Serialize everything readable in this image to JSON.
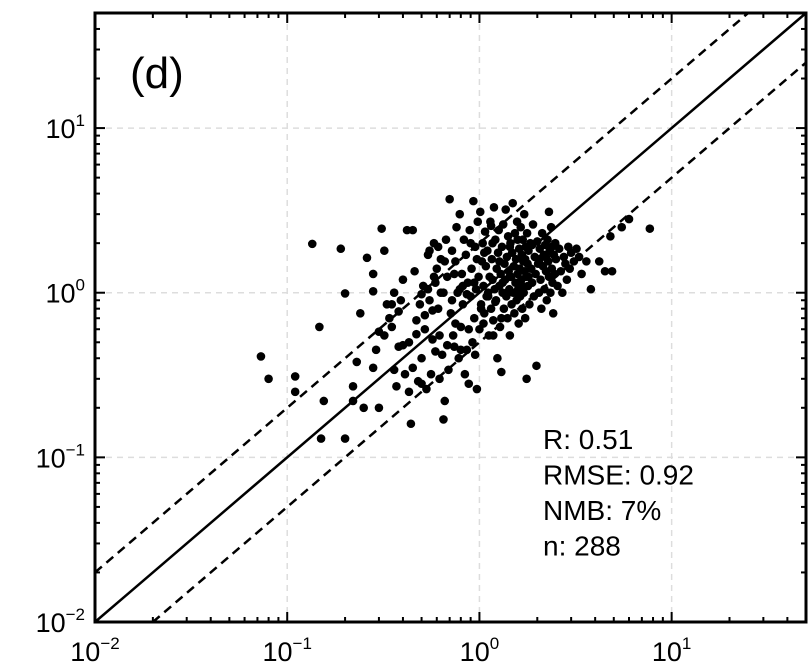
{
  "chart_data": {
    "type": "scatter",
    "panel_label": "(d)",
    "xscale": "log",
    "yscale": "log",
    "xlim": [
      0.01,
      50
    ],
    "ylim": [
      0.01,
      50
    ],
    "grid": true,
    "x_ticks": [
      {
        "value": 0.01,
        "base": "10",
        "exp": "−2"
      },
      {
        "value": 0.1,
        "base": "10",
        "exp": "−1"
      },
      {
        "value": 1,
        "base": "10",
        "exp": "0"
      },
      {
        "value": 10,
        "base": "10",
        "exp": "1"
      }
    ],
    "y_ticks": [
      {
        "value": 0.01,
        "base": "10",
        "exp": "−2"
      },
      {
        "value": 0.1,
        "base": "10",
        "exp": "−1"
      },
      {
        "value": 1,
        "base": "10",
        "exp": "0"
      },
      {
        "value": 10,
        "base": "10",
        "exp": "1"
      }
    ],
    "reference_lines": [
      {
        "style": "solid",
        "ratio": 1
      },
      {
        "style": "dashed",
        "ratio": 2
      },
      {
        "style": "dashed",
        "ratio": 0.5
      }
    ],
    "stats": [
      "R: 0.51",
      "RMSE: 0.92",
      "NMB: 7%",
      "n: 288"
    ],
    "points": [
      [
        0.073,
        0.41
      ],
      [
        0.08,
        0.3
      ],
      [
        0.11,
        0.31
      ],
      [
        0.11,
        0.25
      ],
      [
        0.135,
        1.98
      ],
      [
        0.147,
        0.62
      ],
      [
        0.15,
        0.13
      ],
      [
        0.155,
        0.22
      ],
      [
        0.19,
        1.85
      ],
      [
        0.2,
        0.99
      ],
      [
        0.2,
        0.13
      ],
      [
        0.22,
        0.27
      ],
      [
        0.22,
        0.22
      ],
      [
        0.23,
        0.38
      ],
      [
        0.24,
        0.75
      ],
      [
        0.25,
        0.2
      ],
      [
        0.26,
        1.63
      ],
      [
        0.28,
        1.02
      ],
      [
        0.28,
        1.3
      ],
      [
        0.29,
        0.45
      ],
      [
        0.3,
        0.58
      ],
      [
        0.3,
        0.2
      ],
      [
        0.31,
        2.45
      ],
      [
        0.32,
        1.8
      ],
      [
        0.33,
        0.85
      ],
      [
        0.34,
        0.7
      ],
      [
        0.35,
        0.62
      ],
      [
        0.36,
        1.0
      ],
      [
        0.37,
        0.27
      ],
      [
        0.38,
        0.77
      ],
      [
        0.39,
        0.9
      ],
      [
        0.4,
        1.2
      ],
      [
        0.41,
        0.32
      ],
      [
        0.42,
        2.4
      ],
      [
        0.43,
        0.25
      ],
      [
        0.44,
        0.16
      ],
      [
        0.45,
        2.4
      ],
      [
        0.46,
        1.35
      ],
      [
        0.47,
        0.68
      ],
      [
        0.48,
        0.29
      ],
      [
        0.49,
        0.85
      ],
      [
        0.5,
        0.4
      ],
      [
        0.51,
        1.1
      ],
      [
        0.52,
        0.6
      ],
      [
        0.53,
        0.26
      ],
      [
        0.54,
        1.7
      ],
      [
        0.55,
        0.9
      ],
      [
        0.56,
        0.32
      ],
      [
        0.57,
        0.52
      ],
      [
        0.58,
        2.0
      ],
      [
        0.59,
        0.44
      ],
      [
        0.6,
        1.4
      ],
      [
        0.61,
        0.8
      ],
      [
        0.62,
        0.3
      ],
      [
        0.63,
        1.0
      ],
      [
        0.64,
        0.42
      ],
      [
        0.65,
        0.17
      ],
      [
        0.66,
        0.22
      ],
      [
        0.67,
        2.1
      ],
      [
        0.68,
        1.25
      ],
      [
        0.69,
        0.34
      ],
      [
        0.7,
        3.7
      ],
      [
        0.71,
        0.75
      ],
      [
        0.72,
        1.8
      ],
      [
        0.73,
        0.55
      ],
      [
        0.74,
        0.47
      ],
      [
        0.75,
        1.55
      ],
      [
        0.76,
        2.5
      ],
      [
        0.77,
        1.0
      ],
      [
        0.78,
        0.4
      ],
      [
        0.79,
        3.0
      ],
      [
        0.8,
        0.62
      ],
      [
        0.81,
        1.3
      ],
      [
        0.82,
        0.85
      ],
      [
        0.83,
        2.1
      ],
      [
        0.84,
        0.32
      ],
      [
        0.85,
        1.7
      ],
      [
        0.86,
        0.45
      ],
      [
        0.87,
        1.15
      ],
      [
        0.88,
        0.28
      ],
      [
        0.89,
        2.4
      ],
      [
        0.9,
        0.95
      ],
      [
        0.91,
        1.4
      ],
      [
        0.92,
        0.5
      ],
      [
        0.93,
        3.6
      ],
      [
        0.94,
        0.7
      ],
      [
        0.95,
        1.9
      ],
      [
        0.96,
        1.05
      ],
      [
        0.97,
        0.26
      ],
      [
        0.98,
        2.7
      ],
      [
        0.99,
        1.25
      ],
      [
        1.0,
        0.6
      ],
      [
        1.01,
        3.1
      ],
      [
        1.02,
        0.85
      ],
      [
        1.03,
        1.55
      ],
      [
        1.04,
        2.0
      ],
      [
        1.05,
        1.1
      ],
      [
        1.06,
        0.75
      ],
      [
        1.07,
        2.35
      ],
      [
        1.08,
        1.45
      ],
      [
        1.09,
        0.95
      ],
      [
        1.1,
        1.8
      ],
      [
        1.11,
        1.0
      ],
      [
        1.12,
        0.55
      ],
      [
        1.13,
        1.25
      ],
      [
        1.14,
        2.7
      ],
      [
        1.15,
        0.8
      ],
      [
        1.16,
        1.6
      ],
      [
        1.17,
        1.2
      ],
      [
        1.18,
        0.68
      ],
      [
        1.19,
        3.3
      ],
      [
        1.2,
        1.05
      ],
      [
        1.21,
        2.1
      ],
      [
        1.22,
        0.9
      ],
      [
        1.23,
        1.4
      ],
      [
        1.24,
        0.4
      ],
      [
        1.25,
        1.75
      ],
      [
        1.26,
        2.4
      ],
      [
        1.27,
        1.1
      ],
      [
        1.28,
        0.62
      ],
      [
        1.29,
        1.3
      ],
      [
        1.3,
        0.33
      ],
      [
        1.31,
        1.9
      ],
      [
        1.32,
        1.0
      ],
      [
        1.33,
        2.6
      ],
      [
        1.34,
        0.8
      ],
      [
        1.35,
        1.5
      ],
      [
        1.36,
        1.2
      ],
      [
        1.37,
        3.2
      ],
      [
        1.38,
        0.95
      ],
      [
        1.39,
        1.65
      ],
      [
        1.4,
        0.7
      ],
      [
        1.41,
        2.2
      ],
      [
        1.42,
        1.35
      ],
      [
        1.43,
        1.05
      ],
      [
        1.44,
        0.55
      ],
      [
        1.45,
        2.0
      ],
      [
        1.46,
        1.25
      ],
      [
        1.47,
        0.85
      ],
      [
        1.48,
        1.75
      ],
      [
        1.49,
        3.5
      ],
      [
        1.5,
        1.0
      ],
      [
        1.51,
        1.45
      ],
      [
        1.52,
        0.75
      ],
      [
        1.53,
        2.3
      ],
      [
        1.54,
        1.15
      ],
      [
        1.55,
        1.6
      ],
      [
        1.56,
        0.9
      ],
      [
        1.57,
        2.7
      ],
      [
        1.58,
        1.3
      ],
      [
        1.59,
        1.05
      ],
      [
        1.6,
        0.65
      ],
      [
        1.61,
        1.85
      ],
      [
        1.62,
        1.4
      ],
      [
        1.63,
        0.95
      ],
      [
        1.64,
        2.5
      ],
      [
        1.65,
        1.2
      ],
      [
        1.66,
        1.7
      ],
      [
        1.67,
        0.8
      ],
      [
        1.68,
        2.1
      ],
      [
        1.69,
        1.55
      ],
      [
        1.7,
        1.0
      ],
      [
        1.71,
        3.0
      ],
      [
        1.72,
        1.35
      ],
      [
        1.73,
        0.7
      ],
      [
        1.74,
        1.9
      ],
      [
        1.75,
        1.25
      ],
      [
        1.76,
        0.3
      ],
      [
        1.77,
        2.3
      ],
      [
        1.78,
        1.5
      ],
      [
        1.79,
        1.1
      ],
      [
        1.8,
        1.8
      ],
      [
        1.82,
        0.85
      ],
      [
        1.84,
        2.0
      ],
      [
        1.86,
        1.4
      ],
      [
        1.88,
        1.15
      ],
      [
        1.9,
        2.6
      ],
      [
        1.92,
        0.95
      ],
      [
        1.94,
        1.65
      ],
      [
        1.96,
        1.3
      ],
      [
        1.98,
        0.36
      ],
      [
        2.0,
        2.05
      ],
      [
        2.02,
        1.5
      ],
      [
        2.04,
        1.0
      ],
      [
        2.06,
        1.85
      ],
      [
        2.08,
        1.2
      ],
      [
        2.1,
        0.8
      ],
      [
        2.12,
        2.3
      ],
      [
        2.14,
        1.45
      ],
      [
        2.16,
        1.7
      ],
      [
        2.18,
        1.05
      ],
      [
        2.2,
        1.95
      ],
      [
        2.22,
        1.35
      ],
      [
        2.24,
        0.9
      ],
      [
        2.26,
        2.1
      ],
      [
        2.28,
        1.55
      ],
      [
        2.3,
        1.25
      ],
      [
        2.32,
        1.8
      ],
      [
        2.34,
        1.0
      ],
      [
        2.36,
        2.5
      ],
      [
        2.38,
        1.4
      ],
      [
        2.4,
        1.15
      ],
      [
        2.42,
        0.75
      ],
      [
        2.44,
        1.7
      ],
      [
        2.46,
        1.3
      ],
      [
        2.48,
        2.0
      ],
      [
        2.5,
        1.6
      ],
      [
        2.55,
        1.1
      ],
      [
        2.6,
        1.85
      ],
      [
        2.65,
        1.35
      ],
      [
        2.7,
        1.0
      ],
      [
        2.75,
        1.65
      ],
      [
        2.8,
        1.5
      ],
      [
        2.85,
        1.2
      ],
      [
        2.9,
        1.9
      ],
      [
        2.95,
        1.4
      ],
      [
        3.0,
        1.75
      ],
      [
        3.1,
        1.55
      ],
      [
        3.2,
        1.85
      ],
      [
        3.3,
        1.65
      ],
      [
        3.4,
        1.3
      ],
      [
        3.6,
        1.55
      ],
      [
        3.8,
        1.05
      ],
      [
        4.2,
        1.55
      ],
      [
        4.5,
        1.35
      ],
      [
        4.8,
        2.2
      ],
      [
        4.9,
        1.35
      ],
      [
        5.5,
        2.5
      ],
      [
        6.0,
        2.8
      ],
      [
        7.7,
        2.45
      ],
      [
        2.3,
        3.1
      ],
      [
        1.15,
        2.55
      ],
      [
        0.9,
        2.0
      ],
      [
        0.63,
        1.6
      ],
      [
        0.58,
        1.25
      ],
      [
        0.52,
        0.73
      ],
      [
        0.47,
        0.56
      ],
      [
        0.43,
        0.5
      ],
      [
        0.38,
        0.47
      ],
      [
        0.36,
        0.34
      ],
      [
        0.55,
        1.8
      ],
      [
        0.61,
        1.9
      ],
      [
        0.66,
        1.55
      ],
      [
        0.74,
        1.3
      ],
      [
        0.82,
        1.1
      ],
      [
        0.97,
        1.6
      ],
      [
        1.06,
        1.75
      ],
      [
        1.17,
        2.0
      ],
      [
        1.27,
        1.55
      ],
      [
        1.44,
        1.9
      ],
      [
        1.58,
        2.1
      ],
      [
        1.73,
        1.6
      ],
      [
        1.88,
        1.95
      ],
      [
        2.06,
        1.6
      ],
      [
        2.22,
        1.65
      ],
      [
        2.38,
        1.9
      ],
      [
        0.5,
        0.98
      ],
      [
        0.54,
        1.05
      ],
      [
        0.59,
        1.15
      ],
      [
        0.65,
        1.0
      ],
      [
        0.72,
        0.9
      ],
      [
        0.79,
        1.05
      ],
      [
        0.86,
        0.98
      ],
      [
        0.94,
        1.15
      ],
      [
        1.02,
        0.8
      ],
      [
        1.11,
        0.95
      ],
      [
        1.21,
        0.88
      ],
      [
        1.32,
        1.15
      ],
      [
        1.44,
        1.25
      ],
      [
        1.55,
        1.0
      ],
      [
        1.68,
        1.1
      ],
      [
        1.8,
        1.25
      ],
      [
        0.28,
        0.35
      ],
      [
        0.32,
        0.55
      ],
      [
        0.35,
        0.85
      ],
      [
        0.4,
        0.48
      ],
      [
        0.45,
        0.35
      ],
      [
        0.5,
        0.28
      ],
      [
        0.57,
        0.78
      ],
      [
        0.62,
        0.55
      ],
      [
        0.68,
        0.48
      ],
      [
        0.75,
        0.65
      ],
      [
        0.8,
        0.45
      ],
      [
        0.88,
        0.6
      ],
      [
        0.95,
        0.42
      ],
      [
        1.05,
        0.65
      ],
      [
        1.18,
        0.55
      ],
      [
        1.3,
        0.7
      ]
    ]
  }
}
